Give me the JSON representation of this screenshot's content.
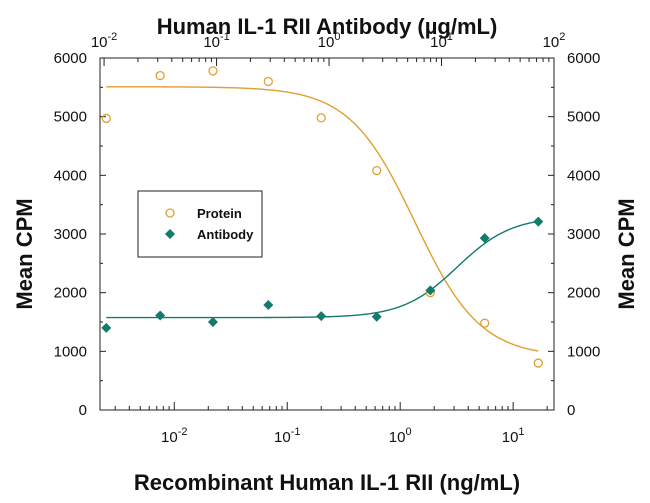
{
  "chart_data": {
    "type": "scatter",
    "title": "Human IL-1 RII Antibody (µg/mL)",
    "xlabel": "Recombinant Human IL-1 RII (ng/mL)",
    "ylabel": "Mean CPM",
    "y2label": "Mean CPM",
    "x_scale": "log",
    "xlim": [
      0.0022,
      23
    ],
    "ylim": [
      0,
      6000
    ],
    "y_ticks": [
      0,
      1000,
      2000,
      3000,
      4000,
      5000,
      6000
    ],
    "y_tick_labels": [
      "0",
      "1000",
      "2000",
      "3000",
      "4000",
      "5000",
      "6000"
    ],
    "bottom_x_ticks": [
      {
        "value": 0.01,
        "base": "10",
        "exp": "-2"
      },
      {
        "value": 0.1,
        "base": "10",
        "exp": "-1"
      },
      {
        "value": 1,
        "base": "10",
        "exp": "0"
      },
      {
        "value": 10,
        "base": "10",
        "exp": "1"
      }
    ],
    "top_axis": {
      "scale": "log",
      "xlim": [
        0.0092,
        100
      ],
      "ticks": [
        {
          "value": 0.01,
          "base": "10",
          "exp": "-2"
        },
        {
          "value": 0.1,
          "base": "10",
          "exp": "-1"
        },
        {
          "value": 1,
          "base": "10",
          "exp": "0"
        },
        {
          "value": 10,
          "base": "10",
          "exp": "1"
        },
        {
          "value": 100,
          "base": "10",
          "exp": "2"
        }
      ]
    },
    "series": [
      {
        "name": "Protein",
        "marker": "open-circle",
        "color": "#e0a030",
        "x": [
          0.0025,
          0.0075,
          0.022,
          0.068,
          0.2,
          0.62,
          1.85,
          5.6,
          16.7
        ],
        "y": [
          4970,
          5700,
          5780,
          5600,
          4980,
          4080,
          2000,
          1480,
          800
        ],
        "fit": {
          "top": 5510,
          "bottom": 900,
          "ec50": 1.35,
          "hill": -1.5
        }
      },
      {
        "name": "Antibody",
        "marker": "filled-diamond",
        "color": "#157a6e",
        "x": [
          0.0025,
          0.0075,
          0.022,
          0.068,
          0.2,
          0.62,
          1.85,
          5.6,
          16.7
        ],
        "y": [
          1400,
          1610,
          1500,
          1790,
          1600,
          1590,
          2040,
          2930,
          3210
        ],
        "fit": {
          "bottom": 1575,
          "top": 3300,
          "ec50": 3.2,
          "hill": 1.8
        }
      }
    ],
    "legend": {
      "position": "upper-left"
    },
    "grid": false
  }
}
